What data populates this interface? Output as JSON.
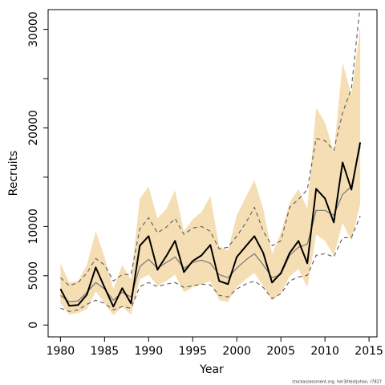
{
  "chart_data": {
    "type": "line",
    "x_label": "Year",
    "y_label": "Recruits",
    "footnote": "stockassessment.org, her30testjohan, r7827",
    "xlim": [
      1978.6,
      2015.9
    ],
    "xticks": [
      1980,
      1985,
      1990,
      1995,
      2000,
      2005,
      2010,
      2015
    ],
    "ylim": [
      -1200,
      32000
    ],
    "yticks": [
      0,
      5000,
      10000,
      20000,
      30000
    ],
    "y_unlabeled_ticks": [
      15000,
      25000
    ],
    "x": [
      1980,
      1981,
      1982,
      1983,
      1984,
      1985,
      1986,
      1987,
      1988,
      1989,
      1990,
      1991,
      1992,
      1993,
      1994,
      1995,
      1996,
      1997,
      1998,
      1999,
      2000,
      2001,
      2002,
      2003,
      2004,
      2005,
      2006,
      2007,
      2008,
      2009,
      2010,
      2011,
      2012,
      2013,
      2014
    ],
    "series": [
      {
        "kind": "band",
        "color": "#f5deb3",
        "upper": [
          6260,
          4310,
          4470,
          6100,
          9510,
          6910,
          3660,
          6100,
          4630,
          12850,
          14060,
          10810,
          11790,
          13660,
          9510,
          10730,
          11460,
          13090,
          7970,
          7560,
          11140,
          12930,
          14720,
          11790,
          7240,
          9350,
          12440,
          13820,
          11790,
          22030,
          20570,
          17480,
          26590,
          23330,
          30330
        ],
        "lower": [
          2200,
          1060,
          1220,
          1630,
          3410,
          2200,
          980,
          1870,
          1060,
          4630,
          5120,
          3980,
          4470,
          5120,
          3330,
          3820,
          4150,
          4470,
          2520,
          2360,
          3820,
          4630,
          5280,
          3980,
          2520,
          3170,
          4960,
          5690,
          3820,
          9190,
          8540,
          7070,
          10330,
          8540,
          12280
        ]
      },
      {
        "kind": "dashed",
        "color": "#666666",
        "values": [
          4800,
          3980,
          4310,
          5280,
          6750,
          6100,
          4470,
          5120,
          5120,
          9760,
          10890,
          9350,
          9920,
          10810,
          9190,
          9840,
          10000,
          9510,
          7720,
          7890,
          9020,
          10330,
          11950,
          9510,
          8050,
          8540,
          11950,
          12760,
          13740,
          18940,
          18700,
          17720,
          21540,
          23980,
          32520
        ]
      },
      {
        "kind": "dashed",
        "color": "#666666",
        "values": [
          1710,
          1380,
          1540,
          2110,
          2520,
          2200,
          1540,
          1870,
          1710,
          3900,
          4310,
          3900,
          4150,
          4310,
          3820,
          3980,
          4150,
          4070,
          3010,
          2850,
          3660,
          4150,
          4470,
          3820,
          2680,
          3170,
          4470,
          4880,
          5040,
          7070,
          7240,
          6910,
          8860,
          8860,
          11060
        ]
      },
      {
        "kind": "thin",
        "color": "#777777",
        "values": [
          3000,
          2360,
          2440,
          3330,
          4310,
          3660,
          2520,
          3330,
          2850,
          5930,
          6670,
          5770,
          6340,
          6910,
          5770,
          6340,
          6590,
          6260,
          5120,
          4800,
          5770,
          6590,
          7240,
          6100,
          4800,
          5120,
          7070,
          7890,
          8210,
          11630,
          11630,
          11140,
          13250,
          14060,
          18130
        ]
      },
      {
        "kind": "thick",
        "color": "#000000",
        "values": [
          3660,
          1950,
          2030,
          3090,
          5850,
          3820,
          1870,
          3740,
          2200,
          8050,
          9020,
          5610,
          6990,
          8540,
          5370,
          6500,
          7070,
          8130,
          4470,
          4150,
          6910,
          7970,
          9020,
          7320,
          4310,
          5280,
          7320,
          8540,
          6260,
          13820,
          12850,
          10410,
          16500,
          13740,
          18540
        ]
      }
    ]
  }
}
